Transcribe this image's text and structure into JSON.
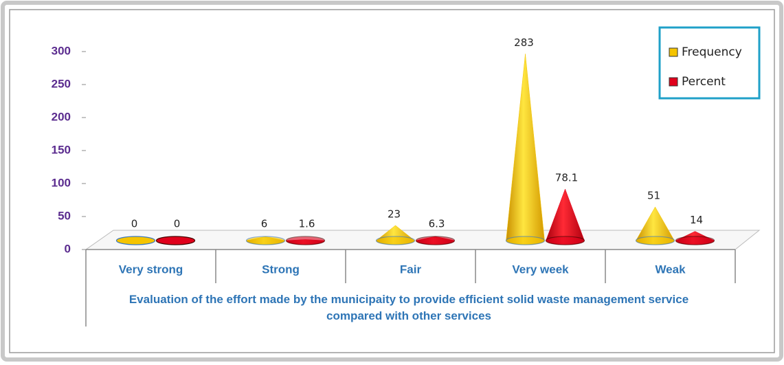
{
  "chart_data": {
    "type": "cone",
    "x_label": "Evaluation of the effort made by the municipaity to provide efficient solid waste management service compared with other services",
    "categories": [
      "Very strong",
      "Strong",
      "Fair",
      "Very week",
      "Weak"
    ],
    "series": [
      {
        "name": "Frequency",
        "color": "#f5c400",
        "values": [
          0,
          6,
          23,
          283,
          51
        ]
      },
      {
        "name": "Percent",
        "color": "#e0001b",
        "values": [
          0,
          1.6,
          6.3,
          78.1,
          14
        ]
      }
    ],
    "ylim": [
      0,
      300
    ],
    "yticks": [
      0,
      50,
      100,
      150,
      200,
      250,
      300
    ],
    "legend": "top-right"
  }
}
